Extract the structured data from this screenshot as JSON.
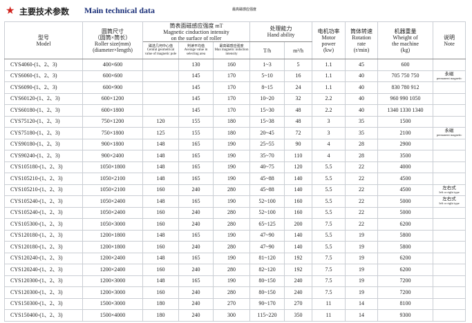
{
  "header": {
    "title_cn": "主要技术参数",
    "title_en": "Main technical data",
    "top_note": "最高磁感应强度"
  },
  "columns": {
    "model": {
      "cn": "型号",
      "en": "Model"
    },
    "size": {
      "cn": "圆筒尺寸",
      "cn2": "（圆筒×筒长）",
      "en": "Roller size(mm)",
      "en2": "(diameter×length)"
    },
    "intensity": {
      "cn": "筒表面磁感应强度 mT",
      "en": "Magnetic cinduction intensity",
      "en2": "on the surface of roller",
      "central": {
        "cn": "磁选几何中心值",
        "en": "Central geometrical value of magnetic pole"
      },
      "average": {
        "cn": "判读平均值",
        "en": "Average value in selecting area"
      },
      "max": {
        "cn": "最高磁感应强度",
        "en": "Max magnetic induction intensity"
      }
    },
    "capacity": {
      "cn": "处理能力",
      "en": "Hand ability",
      "th": "T/h",
      "m3h": "m³/h"
    },
    "power": {
      "cn": "电机功率",
      "en": "Motor",
      "en2": "power",
      "unit": "(kw)"
    },
    "rate": {
      "cn": "筒体转速",
      "en": "Rotation",
      "en2": "rate",
      "unit": "(r/min)"
    },
    "weight": {
      "cn": "机器重量",
      "en": "Wheight of",
      "en2": "the machine",
      "unit": "(kg)"
    },
    "note": {
      "cn": "说明",
      "en": "Note"
    }
  },
  "table": {
    "rows": [
      {
        "model": "CYS4060-(1、2、3)",
        "size": "400×600",
        "average": "130",
        "max": "160",
        "th": "1~3",
        "m3h": "5",
        "power": "1.1",
        "rate": "45",
        "weight": "600"
      },
      {
        "model": "CYS6060-(1、2、3)",
        "size": "600×600",
        "average": "145",
        "max": "170",
        "th": "5~10",
        "m3h": "16",
        "power": "1.1",
        "rate": "40",
        "weight": "705 750 750",
        "note": {
          "cn": "永磁",
          "en": "permanent magnetic"
        }
      },
      {
        "model": "CYS6090-(1、2、3)",
        "size": "600×900",
        "average": "145",
        "max": "170",
        "th": "8~15",
        "m3h": "24",
        "power": "1.1",
        "rate": "40",
        "weight": "830 780 912"
      },
      {
        "model": "CYS60120-(1、2、3)",
        "size": "600×1200",
        "average": "145",
        "max": "170",
        "th": "10~20",
        "m3h": "32",
        "power": "2.2",
        "rate": "40",
        "weight": "960 990 1050"
      },
      {
        "model": "CYS60180-(1、2、3)",
        "size": "600×1800",
        "average": "145",
        "max": "170",
        "th": "15~30",
        "m3h": "48",
        "power": "2.2",
        "rate": "40",
        "weight": "1340 1330 1340"
      },
      {
        "model": "CYS75120-(1、2、3)",
        "size": "750×1200",
        "central": "120",
        "average": "155",
        "max": "180",
        "th": "15~38",
        "m3h": "48",
        "power": "3",
        "rate": "35",
        "weight": "1500"
      },
      {
        "model": "CYS75180-(1、2、3)",
        "size": "750×1800",
        "central": "125",
        "average": "155",
        "max": "180",
        "th": "20~45",
        "m3h": "72",
        "power": "3",
        "rate": "35",
        "weight": "2100",
        "note": {
          "cn": "永磁",
          "en": "permanent magnetic"
        }
      },
      {
        "model": "CYS90180-(1、2、3)",
        "size": "900×1800",
        "central": "148",
        "average": "165",
        "max": "190",
        "th": "25~55",
        "m3h": "90",
        "power": "4",
        "rate": "28",
        "weight": "2900"
      },
      {
        "model": "CYS90240-(1、2、3)",
        "size": "900×2400",
        "central": "148",
        "average": "165",
        "max": "190",
        "th": "35~70",
        "m3h": "110",
        "power": "4",
        "rate": "28",
        "weight": "3500"
      },
      {
        "model": "CYS105180-(1、2、3)",
        "size": "1050×1800",
        "central": "148",
        "average": "165",
        "max": "190",
        "th": "40~75",
        "m3h": "120",
        "power": "5.5",
        "rate": "22",
        "weight": "4000"
      },
      {
        "model": "CYS105210-(1、2、3)",
        "size": "1050×2100",
        "central": "148",
        "average": "165",
        "max": "190",
        "th": "45~88",
        "m3h": "140",
        "power": "5.5",
        "rate": "22",
        "weight": "4500"
      },
      {
        "model": "CYS105210-(1、2、3)",
        "size": "1050×2100",
        "central": "160",
        "average": "240",
        "max": "280",
        "th": "45~88",
        "m3h": "140",
        "power": "5.5",
        "rate": "22",
        "weight": "4500",
        "note": {
          "cn": "左右式",
          "en": "left or right type"
        }
      },
      {
        "model": "CYS105240-(1、2、3)",
        "size": "1050×2400",
        "central": "148",
        "average": "165",
        "max": "190",
        "th": "52~100",
        "m3h": "160",
        "power": "5.5",
        "rate": "22",
        "weight": "5000",
        "note": {
          "cn": "左右式",
          "en": "left or right type"
        }
      },
      {
        "model": "CYS105240-(1、2、3)",
        "size": "1050×2400",
        "central": "160",
        "average": "240",
        "max": "280",
        "th": "52~100",
        "m3h": "160",
        "power": "5.5",
        "rate": "22",
        "weight": "5000"
      },
      {
        "model": "CYS105300-(1、2、3)",
        "size": "1050×3000",
        "central": "160",
        "average": "240",
        "max": "280",
        "th": "65~125",
        "m3h": "200",
        "power": "7.5",
        "rate": "22",
        "weight": "6200"
      },
      {
        "model": "CYS120180-(1、2、3)",
        "size": "1200×1800",
        "central": "148",
        "average": "165",
        "max": "190",
        "th": "47~90",
        "m3h": "140",
        "power": "5.5",
        "rate": "19",
        "weight": "5800"
      },
      {
        "model": "CYS120180-(1、2、3)",
        "size": "1200×1800",
        "central": "160",
        "average": "240",
        "max": "280",
        "th": "47~90",
        "m3h": "140",
        "power": "5.5",
        "rate": "19",
        "weight": "5800"
      },
      {
        "model": "CYS120240-(1、2、3)",
        "size": "1200×2400",
        "central": "148",
        "average": "165",
        "max": "190",
        "th": "81~120",
        "m3h": "192",
        "power": "7.5",
        "rate": "19",
        "weight": "6200"
      },
      {
        "model": "CYS120240-(1、2、3)",
        "size": "1200×2400",
        "central": "160",
        "average": "240",
        "max": "280",
        "th": "82~120",
        "m3h": "192",
        "power": "7.5",
        "rate": "19",
        "weight": "6200"
      },
      {
        "model": "CYS120300-(1、2、3)",
        "size": "1200×3000",
        "central": "148",
        "average": "165",
        "max": "190",
        "th": "80~150",
        "m3h": "240",
        "power": "7.5",
        "rate": "19",
        "weight": "7200"
      },
      {
        "model": "CYS120300-(1、2、3)",
        "size": "1200×3000",
        "central": "160",
        "average": "240",
        "max": "280",
        "th": "80~150",
        "m3h": "240",
        "power": "7.5",
        "rate": "19",
        "weight": "7200"
      },
      {
        "model": "CYS150300-(1、2、3)",
        "size": "1500×3000",
        "central": "180",
        "average": "240",
        "max": "270",
        "th": "90~170",
        "m3h": "270",
        "power": "11",
        "rate": "14",
        "weight": "8100"
      },
      {
        "model": "CYS150400-(1、2、3)",
        "size": "1500×4000",
        "central": "180",
        "average": "240",
        "max": "300",
        "th": "115~220",
        "m3h": "350",
        "power": "11",
        "rate": "14",
        "weight": "9300"
      }
    ]
  }
}
